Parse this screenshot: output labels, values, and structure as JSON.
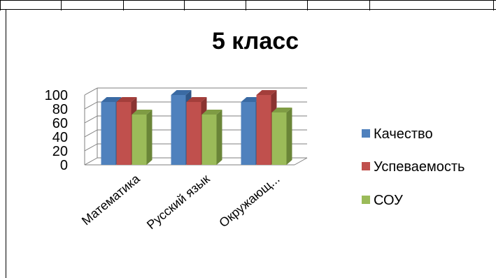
{
  "colors": {
    "series": [
      "#4f81bd",
      "#c0504d",
      "#9bbb59"
    ],
    "series_top": [
      "#3a6aa3",
      "#a33e3b",
      "#7f9c44"
    ],
    "series_side": [
      "#2f5687",
      "#8a3331",
      "#6a8538"
    ],
    "grid": "#7f7f7f"
  },
  "chart_data": {
    "type": "bar",
    "style": "3d-clustered-column",
    "title": "5 класс",
    "categories": [
      "Математика",
      "Русский язык",
      "Окружающ..."
    ],
    "series": [
      {
        "name": "Качество",
        "values": [
          90,
          100,
          90
        ]
      },
      {
        "name": "Успеваемость",
        "values": [
          90,
          90,
          100
        ]
      },
      {
        "name": "СОУ",
        "values": [
          72,
          72,
          75
        ]
      }
    ],
    "y_ticks": [
      0,
      20,
      40,
      60,
      80,
      100
    ],
    "ylim": [
      0,
      100
    ],
    "grid": true,
    "legend": "right"
  }
}
